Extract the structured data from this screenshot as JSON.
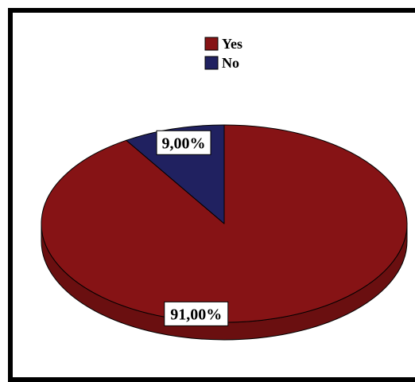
{
  "chart_data": {
    "type": "pie",
    "title": "",
    "three_d": true,
    "legend_position": "top-center",
    "series": [
      {
        "name": "Yes",
        "value": 91.0,
        "label": "91,00%",
        "color": "#861315"
      },
      {
        "name": "No",
        "value": 9.0,
        "label": "9,00%",
        "color": "#202160"
      }
    ],
    "side_colors": {
      "Yes": "#6a0f10",
      "No": "#15164a"
    },
    "edge_color": "#000000"
  }
}
